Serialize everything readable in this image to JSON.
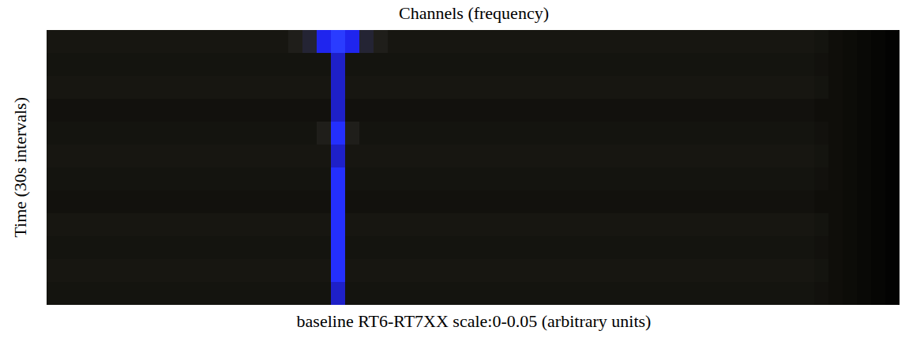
{
  "chart_data": {
    "type": "heatmap",
    "x_label": "Channels (frequency)",
    "y_label": "Time (30s intervals)",
    "caption": "baseline RT6-RT7XX scale:0-0.05 (arbitrary units)",
    "tick_labels": false,
    "color_range": [
      0,
      0.05
    ],
    "cells": [
      [
        0.008,
        0.008,
        0.008,
        0.008,
        0.008,
        0.008,
        0.008,
        0.008,
        0.008,
        0.008,
        0.008,
        0.008,
        0.008,
        0.008,
        0.008,
        0.008,
        0.008,
        0.012,
        0.02,
        0.04,
        0.05,
        0.04,
        0.02,
        0.012,
        0.008,
        0.008,
        0.008,
        0.008,
        0.008,
        0.008,
        0.008,
        0.008,
        0.008,
        0.008,
        0.008,
        0.008,
        0.008,
        0.008,
        0.008,
        0.008,
        0.008,
        0.008,
        0.008,
        0.008,
        0.008,
        0.008,
        0.008,
        0.008,
        0.008,
        0.008,
        0.008,
        0.008,
        0.008,
        0.008,
        0.007,
        0.005,
        0.004,
        0.003,
        0.002,
        0.001
      ],
      [
        0.007,
        0.007,
        0.007,
        0.007,
        0.007,
        0.007,
        0.007,
        0.007,
        0.007,
        0.007,
        0.007,
        0.007,
        0.007,
        0.007,
        0.007,
        0.007,
        0.007,
        0.007,
        0.007,
        0.007,
        0.035,
        0.007,
        0.007,
        0.007,
        0.007,
        0.007,
        0.007,
        0.007,
        0.007,
        0.007,
        0.007,
        0.007,
        0.007,
        0.007,
        0.007,
        0.007,
        0.007,
        0.007,
        0.007,
        0.007,
        0.007,
        0.007,
        0.007,
        0.007,
        0.007,
        0.007,
        0.007,
        0.007,
        0.007,
        0.007,
        0.007,
        0.007,
        0.007,
        0.007,
        0.006,
        0.005,
        0.004,
        0.003,
        0.002,
        0.001
      ],
      [
        0.008,
        0.008,
        0.008,
        0.008,
        0.008,
        0.008,
        0.008,
        0.008,
        0.008,
        0.008,
        0.008,
        0.008,
        0.008,
        0.008,
        0.008,
        0.008,
        0.008,
        0.008,
        0.008,
        0.008,
        0.035,
        0.008,
        0.008,
        0.008,
        0.008,
        0.008,
        0.008,
        0.008,
        0.008,
        0.008,
        0.008,
        0.008,
        0.008,
        0.008,
        0.008,
        0.008,
        0.008,
        0.008,
        0.008,
        0.008,
        0.008,
        0.008,
        0.008,
        0.008,
        0.008,
        0.008,
        0.008,
        0.008,
        0.008,
        0.008,
        0.008,
        0.008,
        0.008,
        0.008,
        0.007,
        0.005,
        0.004,
        0.003,
        0.002,
        0.001
      ],
      [
        0.006,
        0.006,
        0.006,
        0.006,
        0.006,
        0.006,
        0.006,
        0.006,
        0.006,
        0.006,
        0.006,
        0.006,
        0.006,
        0.006,
        0.006,
        0.006,
        0.006,
        0.006,
        0.006,
        0.006,
        0.035,
        0.006,
        0.006,
        0.006,
        0.006,
        0.006,
        0.006,
        0.006,
        0.006,
        0.006,
        0.006,
        0.006,
        0.006,
        0.006,
        0.006,
        0.006,
        0.006,
        0.006,
        0.006,
        0.006,
        0.006,
        0.006,
        0.006,
        0.006,
        0.006,
        0.006,
        0.006,
        0.006,
        0.006,
        0.006,
        0.006,
        0.006,
        0.006,
        0.006,
        0.005,
        0.005,
        0.004,
        0.003,
        0.002,
        0.001
      ],
      [
        0.007,
        0.007,
        0.007,
        0.007,
        0.007,
        0.007,
        0.007,
        0.007,
        0.007,
        0.007,
        0.007,
        0.007,
        0.007,
        0.007,
        0.007,
        0.007,
        0.007,
        0.007,
        0.007,
        0.012,
        0.045,
        0.012,
        0.007,
        0.007,
        0.007,
        0.007,
        0.007,
        0.007,
        0.007,
        0.007,
        0.007,
        0.007,
        0.007,
        0.007,
        0.007,
        0.007,
        0.007,
        0.007,
        0.007,
        0.007,
        0.007,
        0.007,
        0.007,
        0.007,
        0.007,
        0.007,
        0.007,
        0.007,
        0.007,
        0.007,
        0.007,
        0.007,
        0.007,
        0.007,
        0.006,
        0.005,
        0.004,
        0.003,
        0.002,
        0.001
      ],
      [
        0.008,
        0.008,
        0.008,
        0.008,
        0.008,
        0.008,
        0.008,
        0.008,
        0.008,
        0.008,
        0.008,
        0.008,
        0.008,
        0.008,
        0.008,
        0.008,
        0.008,
        0.008,
        0.008,
        0.008,
        0.035,
        0.008,
        0.008,
        0.008,
        0.008,
        0.008,
        0.008,
        0.008,
        0.008,
        0.008,
        0.008,
        0.008,
        0.008,
        0.008,
        0.008,
        0.008,
        0.008,
        0.008,
        0.008,
        0.008,
        0.008,
        0.008,
        0.008,
        0.008,
        0.008,
        0.008,
        0.008,
        0.008,
        0.008,
        0.008,
        0.008,
        0.008,
        0.008,
        0.008,
        0.007,
        0.005,
        0.004,
        0.003,
        0.002,
        0.001
      ],
      [
        0.007,
        0.007,
        0.007,
        0.007,
        0.007,
        0.007,
        0.007,
        0.007,
        0.007,
        0.007,
        0.007,
        0.007,
        0.007,
        0.007,
        0.007,
        0.007,
        0.007,
        0.007,
        0.007,
        0.007,
        0.045,
        0.007,
        0.007,
        0.007,
        0.007,
        0.007,
        0.007,
        0.007,
        0.007,
        0.007,
        0.007,
        0.007,
        0.007,
        0.007,
        0.007,
        0.007,
        0.007,
        0.007,
        0.007,
        0.007,
        0.007,
        0.007,
        0.007,
        0.007,
        0.007,
        0.007,
        0.007,
        0.007,
        0.007,
        0.007,
        0.007,
        0.007,
        0.007,
        0.007,
        0.006,
        0.005,
        0.004,
        0.003,
        0.002,
        0.001
      ],
      [
        0.006,
        0.006,
        0.006,
        0.006,
        0.006,
        0.006,
        0.006,
        0.006,
        0.006,
        0.006,
        0.006,
        0.006,
        0.006,
        0.006,
        0.006,
        0.006,
        0.006,
        0.006,
        0.006,
        0.006,
        0.045,
        0.006,
        0.006,
        0.006,
        0.006,
        0.006,
        0.006,
        0.006,
        0.006,
        0.006,
        0.006,
        0.006,
        0.006,
        0.006,
        0.006,
        0.006,
        0.006,
        0.006,
        0.006,
        0.006,
        0.006,
        0.006,
        0.006,
        0.006,
        0.006,
        0.006,
        0.006,
        0.006,
        0.006,
        0.006,
        0.006,
        0.006,
        0.006,
        0.006,
        0.005,
        0.005,
        0.004,
        0.003,
        0.002,
        0.001
      ],
      [
        0.008,
        0.008,
        0.008,
        0.008,
        0.008,
        0.008,
        0.008,
        0.008,
        0.008,
        0.008,
        0.008,
        0.008,
        0.008,
        0.008,
        0.008,
        0.008,
        0.008,
        0.008,
        0.008,
        0.008,
        0.045,
        0.008,
        0.008,
        0.008,
        0.008,
        0.008,
        0.008,
        0.008,
        0.008,
        0.008,
        0.008,
        0.008,
        0.008,
        0.008,
        0.008,
        0.008,
        0.008,
        0.008,
        0.008,
        0.008,
        0.008,
        0.008,
        0.008,
        0.008,
        0.008,
        0.008,
        0.008,
        0.008,
        0.008,
        0.008,
        0.008,
        0.008,
        0.008,
        0.008,
        0.007,
        0.005,
        0.004,
        0.003,
        0.002,
        0.001
      ],
      [
        0.007,
        0.007,
        0.007,
        0.007,
        0.007,
        0.007,
        0.007,
        0.007,
        0.007,
        0.007,
        0.007,
        0.007,
        0.007,
        0.007,
        0.007,
        0.007,
        0.007,
        0.007,
        0.007,
        0.007,
        0.045,
        0.007,
        0.007,
        0.007,
        0.007,
        0.007,
        0.007,
        0.007,
        0.007,
        0.007,
        0.007,
        0.007,
        0.007,
        0.007,
        0.007,
        0.007,
        0.007,
        0.007,
        0.007,
        0.007,
        0.007,
        0.007,
        0.007,
        0.007,
        0.007,
        0.007,
        0.007,
        0.007,
        0.007,
        0.007,
        0.007,
        0.007,
        0.007,
        0.007,
        0.006,
        0.005,
        0.004,
        0.003,
        0.002,
        0.001
      ],
      [
        0.008,
        0.008,
        0.008,
        0.008,
        0.008,
        0.008,
        0.008,
        0.008,
        0.008,
        0.008,
        0.008,
        0.008,
        0.008,
        0.008,
        0.008,
        0.008,
        0.008,
        0.008,
        0.008,
        0.008,
        0.045,
        0.008,
        0.008,
        0.008,
        0.008,
        0.008,
        0.008,
        0.008,
        0.008,
        0.008,
        0.008,
        0.008,
        0.008,
        0.008,
        0.008,
        0.008,
        0.008,
        0.008,
        0.008,
        0.008,
        0.008,
        0.008,
        0.008,
        0.008,
        0.008,
        0.008,
        0.008,
        0.008,
        0.008,
        0.008,
        0.008,
        0.008,
        0.008,
        0.008,
        0.007,
        0.005,
        0.004,
        0.003,
        0.002,
        0.001
      ],
      [
        0.007,
        0.007,
        0.007,
        0.007,
        0.007,
        0.007,
        0.007,
        0.007,
        0.007,
        0.007,
        0.007,
        0.007,
        0.007,
        0.007,
        0.007,
        0.007,
        0.007,
        0.007,
        0.007,
        0.007,
        0.035,
        0.007,
        0.007,
        0.007,
        0.007,
        0.007,
        0.007,
        0.007,
        0.007,
        0.007,
        0.007,
        0.007,
        0.007,
        0.007,
        0.007,
        0.007,
        0.007,
        0.007,
        0.007,
        0.007,
        0.007,
        0.007,
        0.007,
        0.007,
        0.007,
        0.007,
        0.007,
        0.007,
        0.007,
        0.007,
        0.007,
        0.007,
        0.007,
        0.007,
        0.006,
        0.005,
        0.004,
        0.003,
        0.002,
        0.001
      ]
    ]
  }
}
